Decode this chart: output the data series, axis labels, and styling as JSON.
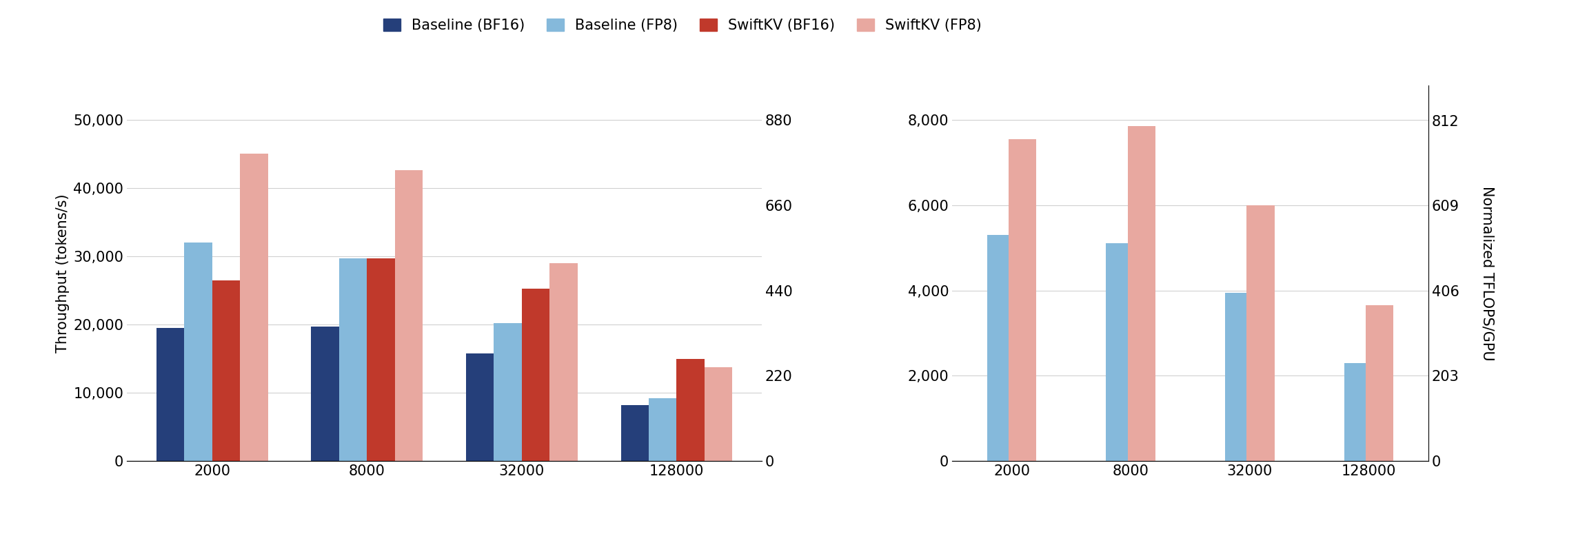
{
  "categories": [
    2000,
    8000,
    32000,
    128000
  ],
  "left_panel": {
    "baseline_bf16": [
      19500,
      19700,
      15800,
      8200
    ],
    "baseline_fp8": [
      32000,
      29700,
      20200,
      9200
    ],
    "swiftkv_bf16": [
      26500,
      29700,
      25300,
      15000
    ],
    "swiftkv_fp8": [
      45000,
      42600,
      29000,
      13700
    ],
    "ylabel": "Throughput (tokens/s)",
    "ylim": [
      0,
      55000
    ],
    "yticks": [
      0,
      10000,
      20000,
      30000,
      40000,
      50000
    ],
    "yticklabels": [
      "0",
      "10,000",
      "20,000",
      "30,000",
      "40,000",
      "50,000"
    ],
    "secondary_yticks": [
      0,
      220,
      440,
      660,
      880
    ],
    "secondary_yticklabels": [
      "0",
      "220",
      "440",
      "660",
      "880"
    ],
    "secondary_ylim": [
      0,
      968
    ]
  },
  "right_panel": {
    "baseline_fp8": [
      5300,
      5100,
      3950,
      2300
    ],
    "swiftkv_fp8": [
      7550,
      7850,
      6000,
      3650
    ],
    "ylim": [
      0,
      8800
    ],
    "yticks": [
      0,
      2000,
      4000,
      6000,
      8000
    ],
    "yticklabels": [
      "0",
      "2,000",
      "4,000",
      "6,000",
      "8,000"
    ],
    "secondary_ylim": [
      0,
      894.4
    ],
    "secondary_yticks": [
      0,
      203,
      406,
      609,
      812
    ],
    "secondary_yticklabels": [
      "0",
      "203",
      "406",
      "609",
      "812"
    ],
    "secondary_ylabel": "Normalized TFLOPS/GPU"
  },
  "colors": {
    "baseline_bf16": "#253f7a",
    "baseline_fp8": "#85b9db",
    "swiftkv_bf16": "#c0392b",
    "swiftkv_fp8": "#e8a8a0"
  },
  "legend": {
    "labels": [
      "Baseline (BF16)",
      "Baseline (FP8)",
      "SwiftKV (BF16)",
      "SwiftKV (FP8)"
    ]
  },
  "bar_width": 0.18,
  "background_color": "#ffffff",
  "grid_color": "#d0d0d0",
  "fontsize": 15
}
